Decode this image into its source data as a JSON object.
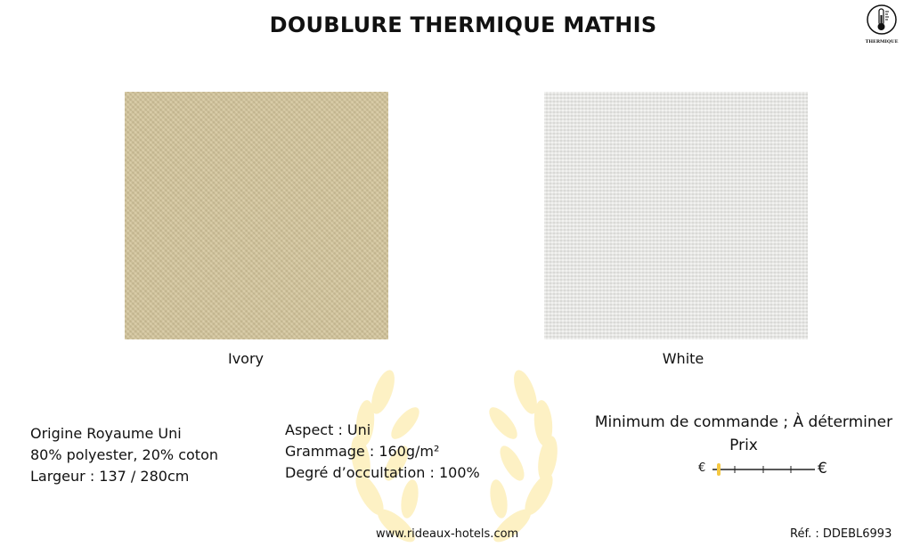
{
  "title": "DOUBLURE THERMIQUE MATHIS",
  "badge": {
    "icon": "thermometer-icon",
    "label": "THERMIQUE"
  },
  "swatches": [
    {
      "name": "Ivory",
      "color": "#d4c69c"
    },
    {
      "name": "White",
      "color": "#e9e9e6"
    }
  ],
  "specs_left": [
    "Origine Royaume Uni",
    "80% polyester, 20% coton",
    "Largeur : 137 / 280cm"
  ],
  "specs_mid": [
    "Aspect : Uni",
    "Grammage : 160g/m²",
    "Degré d’occultation : 100%"
  ],
  "order": {
    "minimum": "Minimum de commande ; À déterminer",
    "price_label": "Prix",
    "low_symbol": "€",
    "high_symbol": "€",
    "price_level": 0,
    "price_steps": 4,
    "marker_color": "#f5c842"
  },
  "footer": {
    "website": "www.rideaux-hotels.com",
    "reference": "Réf. : DDEBL6993"
  }
}
